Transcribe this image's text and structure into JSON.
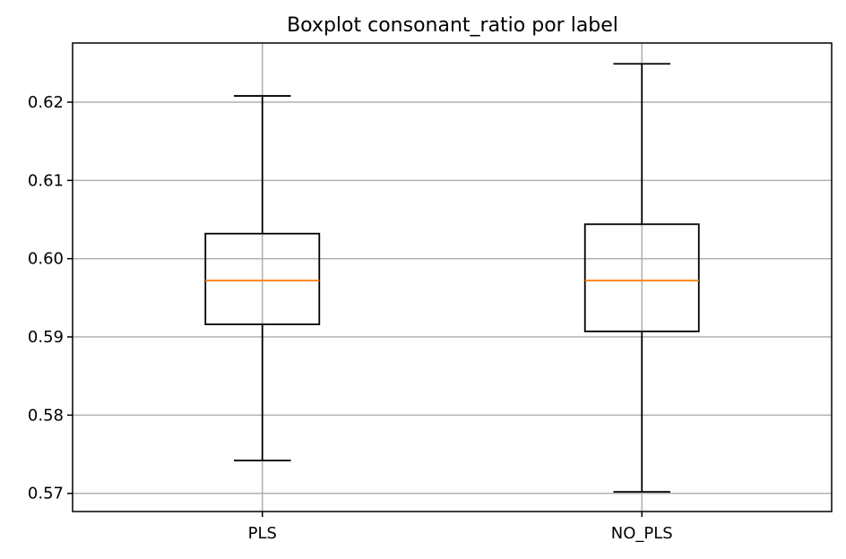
{
  "chart_data": {
    "type": "boxplot",
    "title": "Boxplot consonant_ratio por label",
    "xlabel": "",
    "ylabel": "",
    "categories": [
      "PLS",
      "NO_PLS"
    ],
    "boxes": [
      {
        "category": "PLS",
        "whisker_low": 0.5742,
        "q1": 0.5916,
        "median": 0.5972,
        "q3": 0.6032,
        "whisker_high": 0.6208
      },
      {
        "category": "NO_PLS",
        "whisker_low": 0.5702,
        "q1": 0.5907,
        "median": 0.5972,
        "q3": 0.6044,
        "whisker_high": 0.6249
      }
    ],
    "ylim": [
      0.56768,
      0.62756
    ],
    "yticks": [
      0.57,
      0.58,
      0.59,
      0.6,
      0.61,
      0.62
    ],
    "ytick_labels": [
      "0.57",
      "0.58",
      "0.59",
      "0.60",
      "0.61",
      "0.62"
    ],
    "grid": true,
    "colors": {
      "box": "#000000",
      "median": "#ff7f0e",
      "grid": "#b0b0b0"
    }
  }
}
